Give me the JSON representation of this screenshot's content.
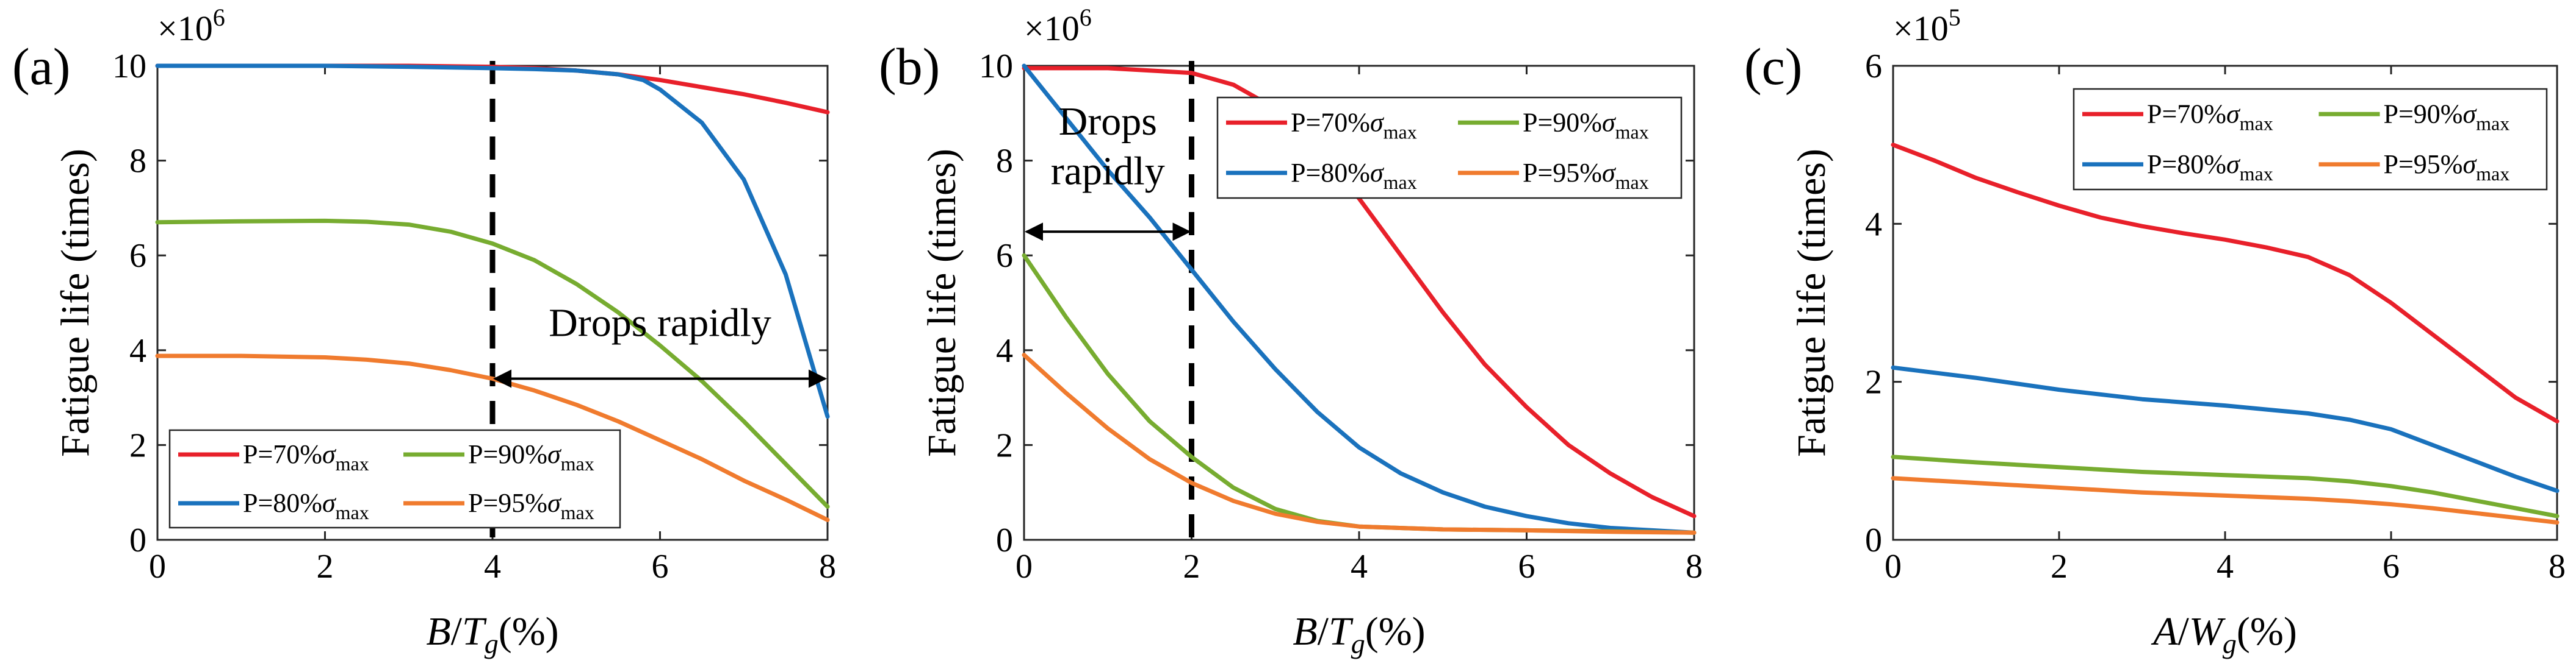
{
  "chart_data": [
    {
      "type": "line",
      "panel_label": "(a)",
      "multiplier": "×10",
      "multiplier_exp": "6",
      "xlabel": {
        "var": "B",
        "sub_base": "T",
        "sub": "g",
        "unit": "(%)"
      },
      "ylabel": "Fatigue life (times)",
      "xlim": [
        0,
        8
      ],
      "ylim": [
        0,
        10
      ],
      "xticks": [
        "0",
        "2",
        "4",
        "6",
        "8"
      ],
      "yticks": [
        "0",
        "2",
        "4",
        "6",
        "8",
        "10"
      ],
      "legend": {
        "position": "bottom-left",
        "entries": [
          "P=70%σmax",
          "P=80%σmax",
          "P=90%σmax",
          "P=95%σmax"
        ]
      },
      "series": [
        {
          "name": "P=70%σmax",
          "color": "#e8202a",
          "x": [
            0,
            1,
            2,
            3,
            4,
            4.5,
            5,
            5.5,
            6,
            6.5,
            7,
            7.5,
            8
          ],
          "y": [
            10,
            10,
            10,
            10,
            9.98,
            9.95,
            9.9,
            9.82,
            9.7,
            9.55,
            9.4,
            9.22,
            9.02
          ]
        },
        {
          "name": "P=80%σmax",
          "color": "#1a72bd",
          "x": [
            0,
            1,
            2,
            3,
            4,
            4.5,
            5,
            5.5,
            5.8,
            6,
            6.5,
            7,
            7.5,
            8
          ],
          "y": [
            10,
            10,
            10,
            9.98,
            9.95,
            9.93,
            9.9,
            9.82,
            9.7,
            9.5,
            8.8,
            7.6,
            5.6,
            2.6
          ]
        },
        {
          "name": "P=90%σmax",
          "color": "#77ac30",
          "x": [
            0,
            1,
            2,
            2.5,
            3,
            3.5,
            4,
            4.5,
            5,
            5.5,
            6,
            6.5,
            7,
            7.5,
            8
          ],
          "y": [
            6.7,
            6.72,
            6.73,
            6.71,
            6.65,
            6.5,
            6.25,
            5.9,
            5.4,
            4.8,
            4.1,
            3.35,
            2.5,
            1.6,
            0.7
          ]
        },
        {
          "name": "P=95%σmax",
          "color": "#f07b2e",
          "x": [
            0,
            1,
            2,
            2.5,
            3,
            3.5,
            4,
            4.5,
            5,
            5.5,
            6,
            6.5,
            7,
            7.5,
            8
          ],
          "y": [
            3.88,
            3.88,
            3.85,
            3.8,
            3.72,
            3.58,
            3.4,
            3.15,
            2.85,
            2.5,
            2.1,
            1.7,
            1.25,
            0.85,
            0.42
          ]
        }
      ],
      "vline_x": 4,
      "arrow": {
        "x1": 4,
        "x2": 8,
        "y": 3.4,
        "text": "Drops rapidly",
        "text_x": 6,
        "text_y": 4.3
      }
    },
    {
      "type": "line",
      "panel_label": "(b)",
      "multiplier": "×10",
      "multiplier_exp": "6",
      "xlabel": {
        "var": "B",
        "sub_base": "T",
        "sub": "g",
        "unit": "(%)"
      },
      "ylabel": "Fatigue life (times)",
      "xlim": [
        0,
        8
      ],
      "ylim": [
        0,
        10
      ],
      "xticks": [
        "0",
        "2",
        "4",
        "6",
        "8"
      ],
      "yticks": [
        "0",
        "2",
        "4",
        "6",
        "8",
        "10"
      ],
      "legend": {
        "position": "top-right",
        "entries": [
          "P=70%σmax",
          "P=80%σmax",
          "P=90%σmax",
          "P=95%σmax"
        ]
      },
      "series": [
        {
          "name": "P=70%σmax",
          "color": "#e8202a",
          "x": [
            0,
            1,
            2,
            2.5,
            3,
            3.5,
            4,
            4.5,
            5,
            5.5,
            6,
            6.5,
            7,
            7.5,
            8
          ],
          "y": [
            9.95,
            9.95,
            9.85,
            9.6,
            9.1,
            8.3,
            7.2,
            6.0,
            4.8,
            3.7,
            2.8,
            2.0,
            1.4,
            0.9,
            0.5
          ]
        },
        {
          "name": "P=80%σmax",
          "color": "#1a72bd",
          "x": [
            0,
            0.5,
            1,
            1.5,
            2,
            2.5,
            3,
            3.5,
            4,
            4.5,
            5,
            5.5,
            6,
            6.5,
            7,
            7.5,
            8
          ],
          "y": [
            10,
            8.9,
            7.8,
            6.8,
            5.7,
            4.6,
            3.6,
            2.7,
            1.95,
            1.4,
            1.0,
            0.7,
            0.5,
            0.35,
            0.25,
            0.2,
            0.15
          ]
        },
        {
          "name": "P=90%σmax",
          "color": "#77ac30",
          "x": [
            0,
            0.5,
            1,
            1.5,
            2,
            2.5,
            3,
            3.5,
            4,
            5,
            6,
            7,
            8
          ],
          "y": [
            6.0,
            4.7,
            3.5,
            2.5,
            1.75,
            1.1,
            0.65,
            0.4,
            0.28,
            0.22,
            0.2,
            0.18,
            0.15
          ]
        },
        {
          "name": "P=95%σmax",
          "color": "#f07b2e",
          "x": [
            0,
            0.5,
            1,
            1.5,
            2,
            2.5,
            3,
            3.5,
            4,
            5,
            6,
            7,
            8
          ],
          "y": [
            3.9,
            3.1,
            2.35,
            1.7,
            1.2,
            0.82,
            0.55,
            0.38,
            0.28,
            0.22,
            0.2,
            0.17,
            0.15
          ]
        }
      ],
      "vline_x": 2,
      "arrow": {
        "x1": 0,
        "x2": 2,
        "y": 6.5,
        "text_line1": "Drops",
        "text_line2": "rapidly",
        "text_x": 1,
        "text1_y": 8.55,
        "text2_y": 7.5
      }
    },
    {
      "type": "line",
      "panel_label": "(c)",
      "multiplier": "×10",
      "multiplier_exp": "5",
      "xlabel": {
        "var": "A",
        "sub_base": "W",
        "sub": "g",
        "unit": "(%)"
      },
      "ylabel": "Fatigue life (times)",
      "xlim": [
        0,
        8
      ],
      "ylim": [
        0,
        6
      ],
      "xticks": [
        "0",
        "2",
        "4",
        "6",
        "8"
      ],
      "yticks": [
        "0",
        "2",
        "4",
        "6"
      ],
      "legend": {
        "position": "top-right",
        "entries": [
          "P=70%σmax",
          "P=80%σmax",
          "P=90%σmax",
          "P=95%σmax"
        ]
      },
      "series": [
        {
          "name": "P=70%σmax",
          "color": "#e8202a",
          "x": [
            0,
            0.5,
            1,
            1.5,
            2,
            2.5,
            3,
            3.5,
            4,
            4.5,
            5,
            5.5,
            6,
            6.5,
            7,
            7.5,
            8
          ],
          "y": [
            5.0,
            4.8,
            4.58,
            4.4,
            4.23,
            4.08,
            3.97,
            3.88,
            3.8,
            3.7,
            3.58,
            3.35,
            3.0,
            2.6,
            2.2,
            1.8,
            1.5
          ]
        },
        {
          "name": "P=80%σmax",
          "color": "#1a72bd",
          "x": [
            0,
            1,
            2,
            3,
            4,
            4.5,
            5,
            5.5,
            6,
            6.5,
            7,
            7.5,
            8
          ],
          "y": [
            2.18,
            2.05,
            1.9,
            1.78,
            1.7,
            1.65,
            1.6,
            1.52,
            1.4,
            1.2,
            1.0,
            0.8,
            0.62
          ]
        },
        {
          "name": "P=90%σmax",
          "color": "#77ac30",
          "x": [
            0,
            1,
            2,
            3,
            4,
            5,
            5.5,
            6,
            6.5,
            7,
            7.5,
            8
          ],
          "y": [
            1.05,
            0.98,
            0.92,
            0.86,
            0.82,
            0.78,
            0.74,
            0.68,
            0.6,
            0.5,
            0.4,
            0.3
          ]
        },
        {
          "name": "P=95%σmax",
          "color": "#f07b2e",
          "x": [
            0,
            1,
            2,
            3,
            4,
            5,
            5.5,
            6,
            6.5,
            7,
            7.5,
            8
          ],
          "y": [
            0.78,
            0.72,
            0.66,
            0.6,
            0.56,
            0.52,
            0.49,
            0.45,
            0.4,
            0.34,
            0.28,
            0.22
          ]
        }
      ]
    }
  ]
}
